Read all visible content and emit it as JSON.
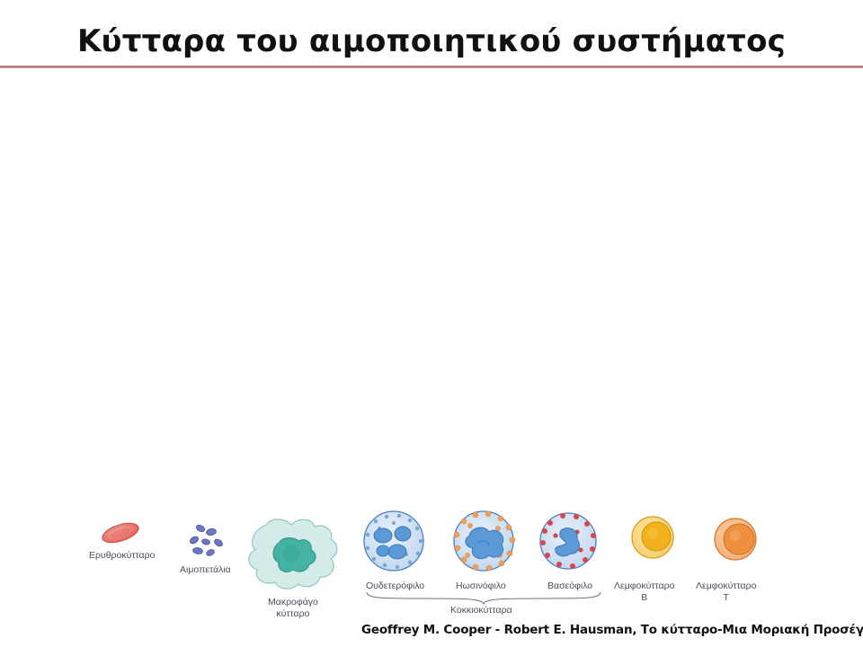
{
  "slide": {
    "title": "Κύτταρα του αιμοποιητικού συστήματος",
    "credit": "Geoffrey M. Cooper - Robert E. Hausman, Το κύτταρο-Μια Μοριακή Προσέγγιση"
  },
  "figure": {
    "labels": {
      "erythrocyte": "Ερυθροκύτταρο",
      "platelets": "Αιμοπετάλια",
      "macrophage_line1": "Μακροφάγο",
      "macrophage_line2": "κύτταρο",
      "neutrophil": "Ουδετερόφιλο",
      "eosinophil": "Ηωσινόφιλο",
      "basophil": "Βασεόφιλο",
      "granulocytes": "Κοκκιοκύτταρα",
      "lymphocyte_b_line1": "Λεμφοκύτταρο",
      "lymphocyte_b_line2": "B",
      "lymphocyte_t_line1": "Λεμφοκύτταρο",
      "lymphocyte_t_line2": "T"
    },
    "colors": {
      "title_rule": "#b26662",
      "erythrocyte": "#e8736b",
      "platelet": "#6b78c2",
      "macrophage_cytoplasm": "#cdeae6",
      "macrophage_nucleus": "#45b3a4",
      "granulocyte_cytoplasm": "#d6e6f5",
      "granulocyte_nucleus": "#5b9ad6",
      "neutrophil_granule": "#7aa4d6",
      "eosinophil_granule": "#f0a05a",
      "basophil_granule": "#d9454a",
      "lymphocyte_b": "#f1b21c",
      "lymphocyte_t": "#f0903f"
    }
  }
}
